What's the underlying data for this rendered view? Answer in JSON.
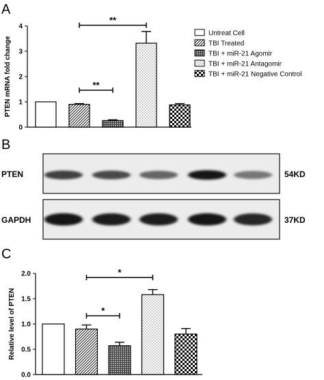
{
  "panels": {
    "a": "A",
    "b": "B",
    "c": "C"
  },
  "legend": [
    {
      "label": "Untreat Cell",
      "pattern": "white"
    },
    {
      "label": "TBI Treated",
      "pattern": "diag"
    },
    {
      "label": "TBI + miR-21 Agomir",
      "pattern": "dense"
    },
    {
      "label": "TBI + miR-21 Antagomir",
      "pattern": "dots"
    },
    {
      "label": "TBI + miR-21 Negative Control",
      "pattern": "check"
    }
  ],
  "blot": {
    "rows": [
      {
        "name": "PTEN",
        "size": "54KD",
        "intensities": [
          0.75,
          0.7,
          0.55,
          1.0,
          0.45
        ]
      },
      {
        "name": "GAPDH",
        "size": "37KD",
        "intensities": [
          1.0,
          0.95,
          0.95,
          0.98,
          0.9
        ]
      }
    ]
  },
  "chart_data": [
    {
      "type": "bar",
      "panel": "A",
      "ylabel": "PTEN mRNA fold change",
      "categories": [
        "Untreat Cell",
        "TBI Treated",
        "TBI + miR-21 Agomir",
        "TBI + miR-21 Antagomir",
        "TBI + miR-21 Negative Control"
      ],
      "values": [
        1.0,
        0.9,
        0.26,
        3.32,
        0.88
      ],
      "errors": [
        0,
        0.03,
        0.03,
        0.46,
        0.05
      ],
      "ylim": [
        0,
        4
      ],
      "yticks": [
        "0",
        "1",
        "2",
        "3",
        "4"
      ],
      "significance": [
        {
          "from": 1,
          "to": 3,
          "label": "**"
        },
        {
          "from": 1,
          "to": 2,
          "label": "**"
        }
      ]
    },
    {
      "type": "bar",
      "panel": "C",
      "ylabel": "Relative level of PTEN",
      "categories": [
        "Untreat Cell",
        "TBI Treated",
        "TBI + miR-21 Agomir",
        "TBI + miR-21 Antagomir",
        "TBI + miR-21 Negative Control"
      ],
      "values": [
        1.0,
        0.9,
        0.57,
        1.58,
        0.8
      ],
      "errors": [
        0,
        0.08,
        0.07,
        0.1,
        0.11
      ],
      "ylim": [
        0,
        2
      ],
      "yticks": [
        "0.0",
        "0.5",
        "1.0",
        "1.5",
        "2.0"
      ],
      "significance": [
        {
          "from": 1,
          "to": 3,
          "label": "*"
        },
        {
          "from": 1,
          "to": 2,
          "label": "*"
        }
      ]
    }
  ]
}
